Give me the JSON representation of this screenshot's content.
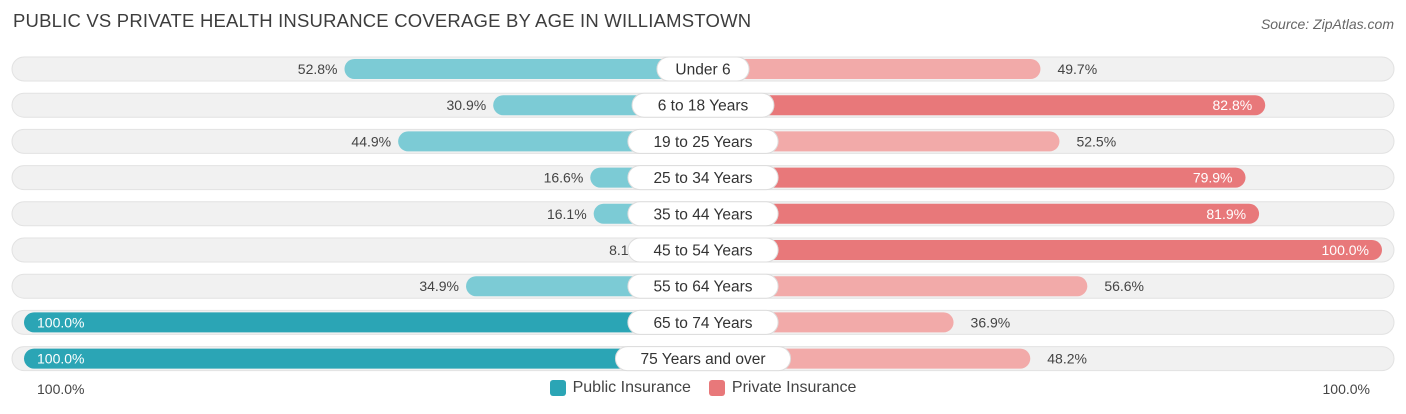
{
  "title": "PUBLIC VS PRIVATE HEALTH INSURANCE COVERAGE BY AGE IN WILLIAMSTOWN",
  "source": "Source: ZipAtlas.com",
  "axis": {
    "left_label": "100.0%",
    "right_label": "100.0%"
  },
  "legend": [
    {
      "label": "Public Insurance",
      "color": "#2ba5b5"
    },
    {
      "label": "Private Insurance",
      "color": "#e8787a"
    }
  ],
  "colors": {
    "public_strong": "#2ba5b5",
    "public_light": "#7ccbd5",
    "private_strong": "#e8787a",
    "private_light": "#f2aaa9",
    "track": "#f1f1f1"
  },
  "chart_data": {
    "type": "bar",
    "orientation": "horizontal-diverging",
    "categories": [
      "Under 6",
      "6 to 18 Years",
      "19 to 25 Years",
      "25 to 34 Years",
      "35 to 44 Years",
      "45 to 54 Years",
      "55 to 64 Years",
      "65 to 74 Years",
      "75 Years and over"
    ],
    "series": [
      {
        "name": "Public Insurance",
        "values": [
          52.8,
          30.9,
          44.9,
          16.6,
          16.1,
          8.1,
          34.9,
          100.0,
          100.0
        ],
        "labels": [
          "52.8%",
          "30.9%",
          "44.9%",
          "16.6%",
          "16.1%",
          "8.1%",
          "34.9%",
          "100.0%",
          "100.0%"
        ]
      },
      {
        "name": "Private Insurance",
        "values": [
          49.7,
          82.8,
          52.5,
          79.9,
          81.9,
          100.0,
          56.6,
          36.9,
          48.2
        ],
        "labels": [
          "49.7%",
          "82.8%",
          "52.5%",
          "79.9%",
          "81.9%",
          "100.0%",
          "56.6%",
          "36.9%",
          "48.2%"
        ]
      }
    ],
    "xlim": [
      0,
      100
    ],
    "legend_position": "bottom-center"
  }
}
